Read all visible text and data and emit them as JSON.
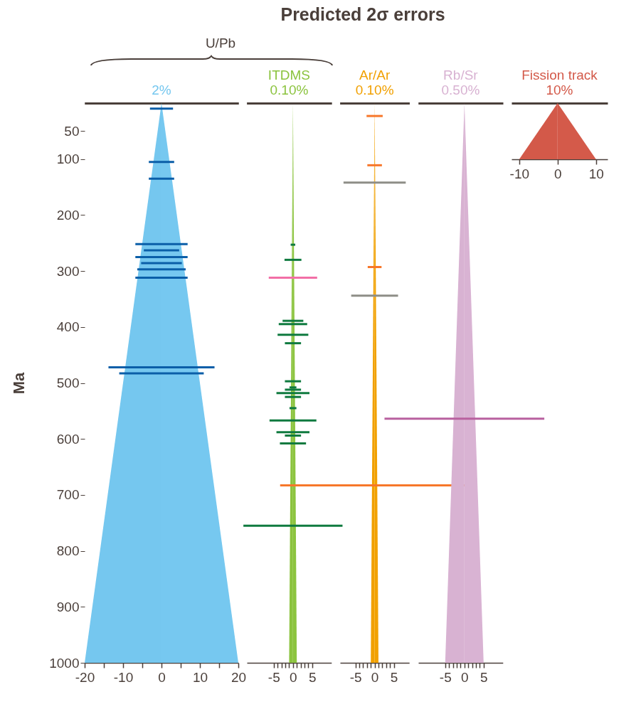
{
  "chart_data": [
    {
      "type": "bar",
      "orientation": "horizontal",
      "title": "2%",
      "ylabel": "Ma",
      "annotations": [
        "Predicted 2σ errors",
        "U/Pb"
      ],
      "xlim": [
        -20,
        20
      ],
      "xticks": [
        -20,
        {
          "value": -15,
          "label": null
        },
        -10,
        {
          "value": -5,
          "label": null
        },
        0,
        {
          "value": 5,
          "label": null
        },
        10,
        {
          "value": 15,
          "label": null
        },
        20
      ],
      "ylim": [
        1000,
        0
      ],
      "yticks": [
        50,
        100,
        200,
        300,
        400,
        500,
        600,
        700,
        800,
        900,
        1000
      ],
      "series": [
        {
          "type": "area",
          "color": "#75c7ef",
          "x": [
            0,
            1000
          ],
          "values": [
            0,
            -20
          ]
        },
        {
          "type": "area",
          "color": "#76c8f0",
          "x": [
            0,
            1000
          ],
          "values": [
            0,
            20
          ]
        },
        {
          "color": "#0a5ea8",
          "x": [
            10,
            105,
            135,
            252,
            263,
            275,
            286,
            297,
            312,
            472,
            483
          ],
          "base": [
            -3,
            -3.3,
            -3.3,
            -6.8,
            -4.6,
            -6.8,
            -5.3,
            -6.3,
            -6.8,
            -13.8,
            -11
          ],
          "values": [
            6,
            6.6,
            6.6,
            13.6,
            9.2,
            13.6,
            10.6,
            12.6,
            13.6,
            27.6,
            22
          ]
        }
      ]
    },
    {
      "type": "bar",
      "orientation": "horizontal",
      "title": "ITDMS",
      "subtitle": "0.10%",
      "tick_labels": "x",
      "xlim": [
        -12,
        10
      ],
      "xticks": [
        -5,
        {
          "value": -4,
          "label": null
        },
        {
          "value": -3,
          "label": null
        },
        {
          "value": -2,
          "label": null
        },
        {
          "value": -1,
          "label": null
        },
        0,
        {
          "value": 1,
          "label": null
        },
        {
          "value": 2,
          "label": null
        },
        {
          "value": 3,
          "label": null
        },
        {
          "value": 4,
          "label": null
        },
        5
      ],
      "ylim": [
        1000,
        0
      ],
      "series": [
        {
          "type": "area",
          "color": "#8bc33e",
          "x": [
            0,
            1000
          ],
          "values": [
            0,
            -1
          ]
        },
        {
          "type": "area",
          "color": "#8cc43f",
          "x": [
            0,
            1000
          ],
          "values": [
            0,
            1
          ]
        },
        {
          "color": "#0f7a3f",
          "x": [
            253,
            280,
            389,
            395,
            414,
            429,
            497,
            508,
            512,
            518,
            525,
            545,
            567,
            588,
            594,
            608,
            755
          ],
          "base": [
            -0.6,
            -2.2,
            -2.7,
            -3.7,
            -4,
            -2.1,
            -2.1,
            -0.9,
            -2.1,
            -4.3,
            -2.1,
            -0.9,
            -6.1,
            -4.3,
            -2.1,
            -3.4,
            -12.9
          ],
          "values": [
            1.2,
            4.4,
            5.4,
            7.4,
            8,
            4.2,
            4.2,
            1.8,
            4.2,
            8.6,
            4.2,
            1.8,
            12.2,
            8.6,
            4.2,
            6.8,
            25.8
          ]
        },
        {
          "color": "#f26fa6",
          "x": [
            312
          ],
          "base": [
            -6.3
          ],
          "values": [
            12.6
          ]
        }
      ]
    },
    {
      "type": "bar",
      "orientation": "horizontal",
      "title": "Ar/Ar",
      "subtitle": "0.10%",
      "tick_labels": "x",
      "xlim": [
        -9,
        9
      ],
      "xticks": [
        -5,
        {
          "value": -4,
          "label": null
        },
        {
          "value": -3,
          "label": null
        },
        {
          "value": -2,
          "label": null
        },
        {
          "value": -1,
          "label": null
        },
        0,
        {
          "value": 1,
          "label": null
        },
        {
          "value": 2,
          "label": null
        },
        {
          "value": 3,
          "label": null
        },
        {
          "value": 4,
          "label": null
        },
        5
      ],
      "ylim": [
        1000,
        0
      ],
      "series": [
        {
          "type": "area",
          "color": "#f1a000",
          "x": [
            0,
            1000
          ],
          "values": [
            0,
            -1
          ]
        },
        {
          "type": "area",
          "color": "#f2a100",
          "x": [
            0,
            1000
          ],
          "values": [
            0,
            1
          ]
        },
        {
          "color": "#8e8e87",
          "x": [
            142,
            344
          ],
          "base": [
            -8.1,
            -6.1
          ],
          "values": [
            16.2,
            12.2
          ]
        },
        {
          "color": "#f7772a",
          "x": [
            23,
            111,
            293,
            683
          ],
          "base": [
            -2.1,
            -1.9,
            -1.8,
            -24.6
          ],
          "values": [
            4.2,
            3.8,
            3.6,
            49.2
          ]
        }
      ]
    },
    {
      "type": "bar",
      "orientation": "horizontal",
      "title": "Rb/Sr",
      "subtitle": "0.50%",
      "tick_labels": "x",
      "xlim": [
        -12,
        10
      ],
      "xticks": [
        -5,
        {
          "value": -4,
          "label": null
        },
        {
          "value": -3,
          "label": null
        },
        {
          "value": -2,
          "label": null
        },
        {
          "value": -1,
          "label": null
        },
        0,
        {
          "value": 1,
          "label": null
        },
        {
          "value": 2,
          "label": null
        },
        {
          "value": 3,
          "label": null
        },
        {
          "value": 4,
          "label": null
        },
        5
      ],
      "ylim": [
        1000,
        0
      ],
      "series": [
        {
          "type": "area",
          "color": "#d8b2d2",
          "x": [
            0,
            1000
          ],
          "values": [
            0,
            -5
          ]
        },
        {
          "type": "area",
          "color": "#d9b3d3",
          "x": [
            0,
            1000
          ],
          "values": [
            0,
            5
          ]
        },
        {
          "color": "#b9619f",
          "x": [
            564
          ],
          "base": [
            -20.8
          ],
          "values": [
            41.6
          ]
        }
      ]
    },
    {
      "type": "area",
      "orientation": "horizontal",
      "title": "Fission track",
      "subtitle": "10%",
      "tick_labels": "x",
      "xlim": [
        -12,
        13
      ],
      "xticks": [
        -10,
        0,
        10
      ],
      "categories": [
        null,
        null
      ],
      "series": [
        {
          "color": "#d35949",
          "values": [
            0,
            -10
          ]
        },
        {
          "color": "#d45a4a",
          "values": [
            0,
            10
          ]
        }
      ]
    }
  ]
}
